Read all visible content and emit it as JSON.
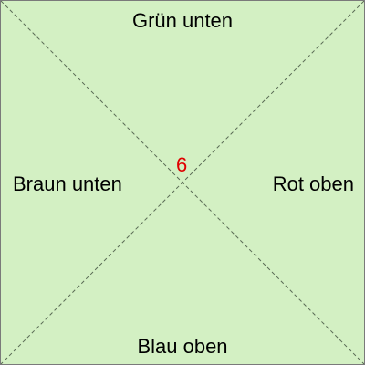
{
  "labels": {
    "top": "Grün unten",
    "bottom": "Blau oben",
    "left": "Braun unten",
    "right": "Rot oben"
  },
  "center_number": "6",
  "colors": {
    "panel_background": "#d3f0c3",
    "panel_border": "#7a7a7a",
    "diagonal_lines": "#5a6b55",
    "center_number": "#e00000",
    "label_text": "#000000"
  }
}
